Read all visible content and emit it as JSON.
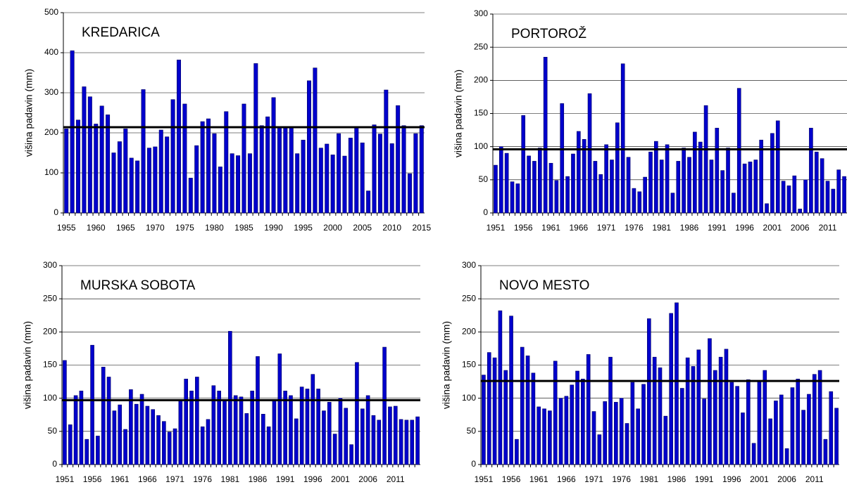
{
  "chart_data": [
    {
      "type": "bar",
      "title": "KREDARICA",
      "ylabel": "višina padavin (mm)",
      "color": "#0000cc",
      "grid": true,
      "hline": 214,
      "ylim": [
        0,
        500
      ],
      "yticks": [
        0,
        100,
        200,
        300,
        400,
        500
      ],
      "categories": [
        "1955",
        null,
        null,
        null,
        null,
        "1960",
        null,
        null,
        null,
        null,
        "1965",
        null,
        null,
        null,
        null,
        "1970",
        null,
        null,
        null,
        null,
        "1975",
        null,
        null,
        null,
        null,
        "1980",
        null,
        null,
        null,
        null,
        "1985",
        null,
        null,
        null,
        null,
        "1990",
        null,
        null,
        null,
        null,
        "1995",
        null,
        null,
        null,
        null,
        "2000",
        null,
        null,
        null,
        null,
        "2005",
        null,
        null,
        null,
        null,
        "2010",
        null,
        null,
        null,
        null,
        "2015"
      ],
      "values": [
        210,
        405,
        232,
        315,
        290,
        222,
        267,
        245,
        150,
        178,
        210,
        137,
        130,
        308,
        162,
        165,
        207,
        190,
        283,
        382,
        272,
        87,
        168,
        228,
        235,
        198,
        115,
        253,
        148,
        143,
        272,
        148,
        373,
        218,
        240,
        288,
        215,
        215,
        215,
        148,
        182,
        330,
        362,
        162,
        172,
        145,
        198,
        142,
        187,
        215,
        175,
        55,
        220,
        197,
        307,
        173,
        268,
        218,
        98,
        198,
        218
      ]
    },
    {
      "type": "bar",
      "title": "PORTOROŽ",
      "ylabel": "višina padavin (mm)",
      "color": "#0000cc",
      "grid": true,
      "hline": 96,
      "ylim": [
        0,
        300
      ],
      "yticks": [
        0,
        50,
        100,
        150,
        200,
        250,
        300
      ],
      "categories": [
        "1951",
        null,
        null,
        null,
        null,
        "1956",
        null,
        null,
        null,
        null,
        "1961",
        null,
        null,
        null,
        null,
        "1966",
        null,
        null,
        null,
        null,
        "1971",
        null,
        null,
        null,
        null,
        "1976",
        null,
        null,
        null,
        null,
        "1981",
        null,
        null,
        null,
        null,
        "1986",
        null,
        null,
        null,
        null,
        "1991",
        null,
        null,
        null,
        null,
        "1996",
        null,
        null,
        null,
        null,
        "2001",
        null,
        null,
        null,
        null,
        "2006",
        null,
        null,
        null,
        null,
        "2011",
        null,
        null,
        null
      ],
      "values": [
        72,
        100,
        90,
        47,
        44,
        147,
        86,
        78,
        98,
        235,
        75,
        49,
        165,
        55,
        89,
        123,
        111,
        180,
        78,
        58,
        103,
        80,
        136,
        225,
        84,
        37,
        32,
        54,
        92,
        108,
        80,
        103,
        30,
        78,
        98,
        84,
        122,
        107,
        162,
        80,
        128,
        64,
        98,
        30,
        188,
        74,
        77,
        80,
        110,
        14,
        120,
        139,
        48,
        41,
        56,
        6,
        50,
        128,
        92,
        82,
        48,
        36,
        65,
        55
      ]
    },
    {
      "type": "bar",
      "title": "MURSKA SOBOTA",
      "ylabel": "višina padavin (mm)",
      "color": "#0000cc",
      "grid": true,
      "hline": 97,
      "ylim": [
        0,
        300
      ],
      "yticks": [
        0,
        50,
        100,
        150,
        200,
        250,
        300
      ],
      "categories": [
        "1951",
        null,
        null,
        null,
        null,
        "1956",
        null,
        null,
        null,
        null,
        "1961",
        null,
        null,
        null,
        null,
        "1966",
        null,
        null,
        null,
        null,
        "1971",
        null,
        null,
        null,
        null,
        "1976",
        null,
        null,
        null,
        null,
        "1981",
        null,
        null,
        null,
        null,
        "1986",
        null,
        null,
        null,
        null,
        "1991",
        null,
        null,
        null,
        null,
        "1996",
        null,
        null,
        null,
        null,
        "2001",
        null,
        null,
        null,
        null,
        "2006",
        null,
        null,
        null,
        null,
        "2011",
        null,
        null,
        null,
        null
      ],
      "values": [
        157,
        60,
        104,
        111,
        38,
        180,
        43,
        147,
        132,
        81,
        90,
        53,
        113,
        91,
        106,
        88,
        83,
        74,
        65,
        49,
        54,
        98,
        129,
        111,
        132,
        57,
        68,
        119,
        111,
        97,
        201,
        104,
        102,
        77,
        111,
        163,
        76,
        57,
        98,
        167,
        111,
        104,
        69,
        117,
        114,
        136,
        114,
        81,
        94,
        46,
        100,
        85,
        30,
        154,
        84,
        104,
        74,
        67,
        177,
        87,
        88,
        68,
        67,
        67,
        72
      ]
    },
    {
      "type": "bar",
      "title": "NOVO MESTO",
      "ylabel": "višina padavin (mm)",
      "color": "#0000cc",
      "grid": true,
      "hline": 126,
      "ylim": [
        0,
        300
      ],
      "yticks": [
        0,
        50,
        100,
        150,
        200,
        250,
        300
      ],
      "categories": [
        "1951",
        null,
        null,
        null,
        null,
        "1956",
        null,
        null,
        null,
        null,
        "1961",
        null,
        null,
        null,
        null,
        "1966",
        null,
        null,
        null,
        null,
        "1971",
        null,
        null,
        null,
        null,
        "1976",
        null,
        null,
        null,
        null,
        "1981",
        null,
        null,
        null,
        null,
        "1986",
        null,
        null,
        null,
        null,
        "1991",
        null,
        null,
        null,
        null,
        "1996",
        null,
        null,
        null,
        null,
        "2001",
        null,
        null,
        null,
        null,
        "2006",
        null,
        null,
        null,
        null,
        "2011",
        null,
        null,
        null,
        null
      ],
      "values": [
        135,
        169,
        161,
        232,
        142,
        224,
        38,
        177,
        164,
        138,
        87,
        84,
        81,
        156,
        100,
        103,
        120,
        141,
        129,
        166,
        80,
        45,
        95,
        162,
        94,
        100,
        62,
        124,
        84,
        121,
        220,
        162,
        146,
        73,
        228,
        244,
        115,
        161,
        148,
        173,
        99,
        190,
        142,
        162,
        174,
        124,
        118,
        78,
        128,
        32,
        125,
        142,
        69,
        96,
        105,
        24,
        116,
        129,
        82,
        106,
        136,
        142,
        38,
        110,
        85
      ]
    }
  ]
}
